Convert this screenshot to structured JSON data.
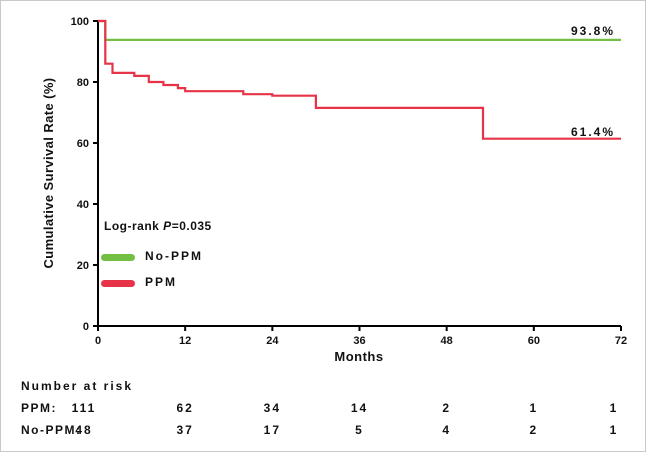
{
  "chart_data": {
    "type": "line",
    "subtype": "kaplan-meier-step-survival",
    "title": "",
    "xlabel": "Months",
    "ylabel": "Cumulative Survival Rate (%)",
    "xlim": [
      0,
      72
    ],
    "ylim": [
      0,
      100
    ],
    "xticks": [
      0,
      12,
      24,
      36,
      48,
      60,
      72
    ],
    "yticks": [
      0,
      20,
      40,
      60,
      80,
      100
    ],
    "grid": false,
    "legend_position": "inside-left-lower",
    "series": [
      {
        "name": "No-PPM",
        "color": "#72bf44",
        "end_label": "93.8%",
        "points": [
          [
            0,
            100
          ],
          [
            1,
            93.8
          ],
          [
            72,
            93.8
          ]
        ]
      },
      {
        "name": "PPM",
        "color": "#e73347",
        "end_label": "61.4%",
        "points": [
          [
            0,
            100
          ],
          [
            1,
            86
          ],
          [
            2,
            83
          ],
          [
            5,
            82
          ],
          [
            7,
            80
          ],
          [
            9,
            79
          ],
          [
            11,
            78
          ],
          [
            12,
            77
          ],
          [
            20,
            76
          ],
          [
            24,
            75.5
          ],
          [
            30,
            71.5
          ],
          [
            53,
            61.4
          ],
          [
            72,
            61.4
          ]
        ]
      }
    ],
    "annotation": {
      "logrank_prefix": "Log-rank ",
      "logrank_stat": "P",
      "logrank_value": "=0.035"
    },
    "legend": [
      {
        "label": "No-PPM",
        "color": "#72bf44"
      },
      {
        "label": "PPM",
        "color": "#e73347"
      }
    ],
    "number_at_risk": {
      "title": "Number at risk",
      "rows": [
        {
          "label": "PPM:",
          "values": [
            "111",
            "62",
            "34",
            "14",
            "2",
            "1",
            "1"
          ]
        },
        {
          "label": "No-PPM:",
          "values": [
            "48",
            "37",
            "17",
            "5",
            "4",
            "2",
            "1"
          ]
        }
      ]
    }
  }
}
